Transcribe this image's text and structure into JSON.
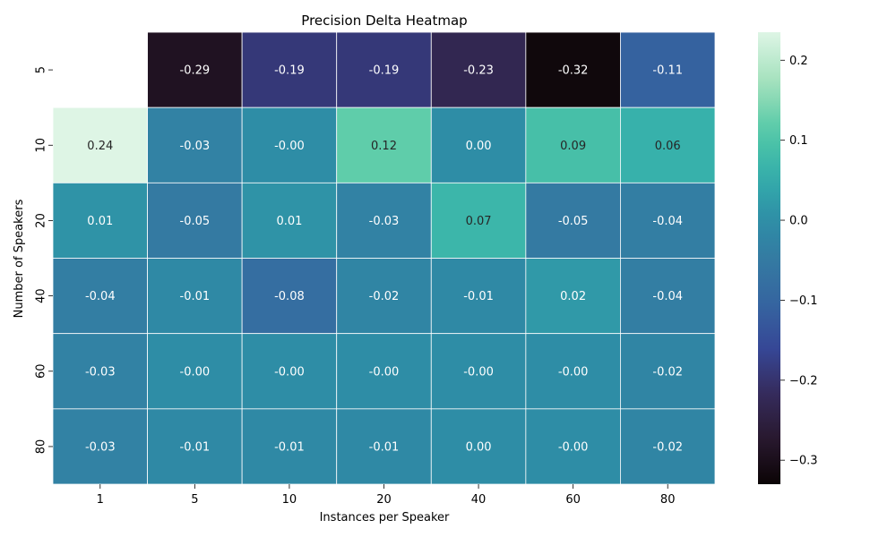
{
  "chart_data": {
    "type": "heatmap",
    "title": "Precision Delta Heatmap",
    "xlabel": "Instances per Speaker",
    "ylabel": "Number of Speakers",
    "x_categories": [
      "1",
      "5",
      "10",
      "20",
      "40",
      "60",
      "80"
    ],
    "y_categories": [
      "5",
      "10",
      "20",
      "40",
      "60",
      "80"
    ],
    "values": [
      [
        null,
        -0.29,
        -0.19,
        -0.19,
        -0.23,
        -0.32,
        -0.11
      ],
      [
        0.24,
        -0.03,
        -0.0,
        0.12,
        0.0,
        0.09,
        0.06
      ],
      [
        0.01,
        -0.05,
        0.01,
        -0.03,
        0.07,
        -0.05,
        -0.04
      ],
      [
        -0.04,
        -0.01,
        -0.08,
        -0.02,
        -0.01,
        0.02,
        -0.04
      ],
      [
        -0.03,
        -0.0,
        -0.0,
        -0.0,
        -0.0,
        -0.0,
        -0.02
      ],
      [
        -0.03,
        -0.01,
        -0.01,
        -0.01,
        0.0,
        -0.0,
        -0.02
      ]
    ],
    "value_labels": [
      [
        "",
        "-0.29",
        "-0.19",
        "-0.19",
        "-0.23",
        "-0.32",
        "-0.11"
      ],
      [
        "0.24",
        "-0.03",
        "-0.00",
        "0.12",
        "0.00",
        "0.09",
        "0.06"
      ],
      [
        "0.01",
        "-0.05",
        "0.01",
        "-0.03",
        "0.07",
        "-0.05",
        "-0.04"
      ],
      [
        "-0.04",
        "-0.01",
        "-0.08",
        "-0.02",
        "-0.01",
        "0.02",
        "-0.04"
      ],
      [
        "-0.03",
        "-0.00",
        "-0.00",
        "-0.00",
        "-0.00",
        "-0.00",
        "-0.02"
      ],
      [
        "-0.03",
        "-0.01",
        "-0.01",
        "-0.01",
        "0.00",
        "-0.00",
        "-0.02"
      ]
    ],
    "colorbar": {
      "min": -0.33,
      "max": 0.235,
      "ticks": [
        0.2,
        0.1,
        0.0,
        -0.1,
        -0.2,
        -0.3
      ],
      "tick_labels": [
        "0.2",
        "0.1",
        "0.0",
        "−0.1",
        "−0.2",
        "−0.3"
      ],
      "colormap": "mako"
    },
    "grid": false
  }
}
